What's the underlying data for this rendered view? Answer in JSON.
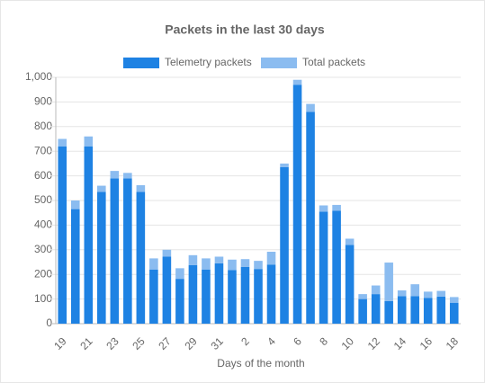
{
  "chart_data": {
    "type": "stacked-bar",
    "title": "Packets in the last 30 days",
    "x_label": "Days of the month",
    "categories": [
      "19",
      null,
      "21",
      null,
      "23",
      null,
      "25",
      null,
      "27",
      null,
      "29",
      null,
      "31",
      null,
      "2",
      null,
      "4",
      null,
      "6",
      null,
      "8",
      null,
      "10",
      null,
      "12",
      null,
      "14",
      null,
      "16",
      null,
      "18"
    ],
    "series": [
      {
        "name": "Telemetry packets",
        "color": "#1e82e3",
        "values": [
          720,
          465,
          720,
          535,
          590,
          590,
          535,
          220,
          272,
          182,
          238,
          220,
          245,
          218,
          230,
          222,
          240,
          635,
          970,
          860,
          455,
          458,
          320,
          100,
          120,
          92,
          112,
          112,
          105,
          110,
          85
        ]
      },
      {
        "name": "Total packets",
        "color": "#8bbcf0",
        "values": [
          30,
          35,
          40,
          25,
          30,
          22,
          27,
          45,
          28,
          43,
          40,
          45,
          27,
          42,
          32,
          33,
          52,
          15,
          20,
          32,
          25,
          24,
          25,
          20,
          35,
          156,
          23,
          48,
          25,
          23,
          23
        ]
      }
    ],
    "ylim": [
      0,
      1000
    ],
    "yticks": [
      0,
      100,
      200,
      300,
      400,
      500,
      600,
      700,
      800,
      900,
      {
        "value": 1000,
        "label": "1,000"
      }
    ],
    "grid": true,
    "legend": "top"
  }
}
